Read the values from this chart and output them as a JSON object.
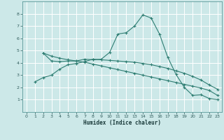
{
  "xlabel": "Humidex (Indice chaleur)",
  "bg_color": "#cce8e8",
  "grid_color": "#ffffff",
  "line_color": "#2e7d72",
  "xlim": [
    -0.5,
    23.5
  ],
  "ylim": [
    0,
    9
  ],
  "xticks": [
    0,
    1,
    2,
    3,
    4,
    5,
    6,
    7,
    8,
    9,
    10,
    11,
    12,
    13,
    14,
    15,
    16,
    17,
    18,
    19,
    20,
    21,
    22,
    23
  ],
  "yticks": [
    1,
    2,
    3,
    4,
    5,
    6,
    7,
    8
  ],
  "line1_x": [
    2,
    3,
    4,
    5,
    6,
    7,
    8,
    9,
    10,
    11,
    12,
    13,
    14,
    15,
    16,
    17,
    18,
    19,
    20,
    21,
    22,
    23
  ],
  "line1_y": [
    4.8,
    4.15,
    4.1,
    4.15,
    4.15,
    4.3,
    4.25,
    4.3,
    4.85,
    6.35,
    6.45,
    7.0,
    7.9,
    7.65,
    6.35,
    4.45,
    3.05,
    2.0,
    1.35,
    1.4,
    1.1,
    1.0
  ],
  "line2_x": [
    1,
    2,
    3,
    4,
    5,
    6,
    7,
    8,
    9,
    10,
    11,
    12,
    13,
    14,
    15,
    16,
    17,
    18,
    19,
    20,
    21,
    22,
    23
  ],
  "line2_y": [
    2.45,
    2.8,
    3.0,
    3.5,
    3.85,
    3.95,
    4.1,
    4.3,
    4.25,
    4.2,
    4.15,
    4.1,
    4.05,
    3.95,
    3.85,
    3.7,
    3.55,
    3.35,
    3.15,
    2.9,
    2.6,
    2.2,
    1.85
  ],
  "line3_x": [
    2,
    3,
    4,
    5,
    6,
    7,
    8,
    9,
    10,
    11,
    12,
    13,
    14,
    15,
    16,
    17,
    18,
    19,
    20,
    21,
    22,
    23
  ],
  "line3_y": [
    4.8,
    4.55,
    4.38,
    4.25,
    4.15,
    4.05,
    3.9,
    3.75,
    3.6,
    3.45,
    3.3,
    3.15,
    3.0,
    2.85,
    2.7,
    2.55,
    2.4,
    2.25,
    2.1,
    1.95,
    1.75,
    1.35
  ]
}
